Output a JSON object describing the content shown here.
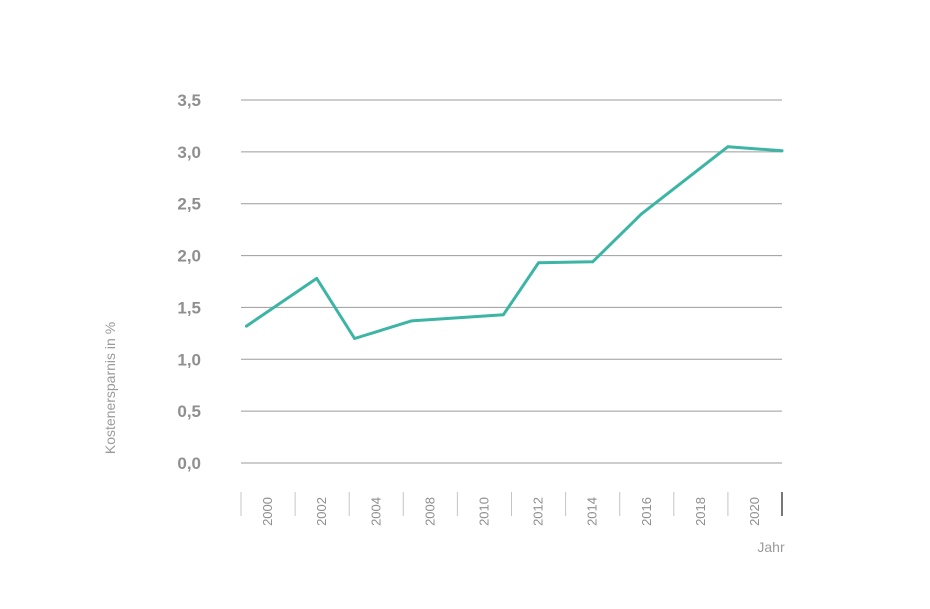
{
  "chart_data": {
    "type": "line",
    "xlabel": "Jahr",
    "ylabel": "Kostenersparnis in %",
    "ylim": [
      0,
      3.5
    ],
    "y_ticks": [
      "0,0",
      "0,5",
      "1,0",
      "1,5",
      "2,0",
      "2,5",
      "3,0",
      "3,5"
    ],
    "y_tick_values": [
      0,
      0.5,
      1.0,
      1.5,
      2.0,
      2.5,
      3.0,
      3.5
    ],
    "x_tick_labels": [
      "2000",
      "2002",
      "2004",
      "2008",
      "2010",
      "2012",
      "2014",
      "2016",
      "2018",
      "2020"
    ],
    "grid": true,
    "series": [
      {
        "color": "#3cb5a4",
        "points": [
          {
            "slot": 0.1,
            "y": 1.32
          },
          {
            "slot": 1.4,
            "y": 1.78
          },
          {
            "slot": 2.1,
            "y": 1.2
          },
          {
            "slot": 3.15,
            "y": 1.37
          },
          {
            "slot": 4.85,
            "y": 1.43
          },
          {
            "slot": 5.5,
            "y": 1.93
          },
          {
            "slot": 6.5,
            "y": 1.94
          },
          {
            "slot": 7.4,
            "y": 2.4
          },
          {
            "slot": 9.0,
            "y": 3.05
          },
          {
            "slot": 10.0,
            "y": 3.01
          }
        ]
      }
    ]
  },
  "colors": {
    "line": "#3cb5a4",
    "grid": "#9b9b9b",
    "text": "#8f8f8f"
  }
}
